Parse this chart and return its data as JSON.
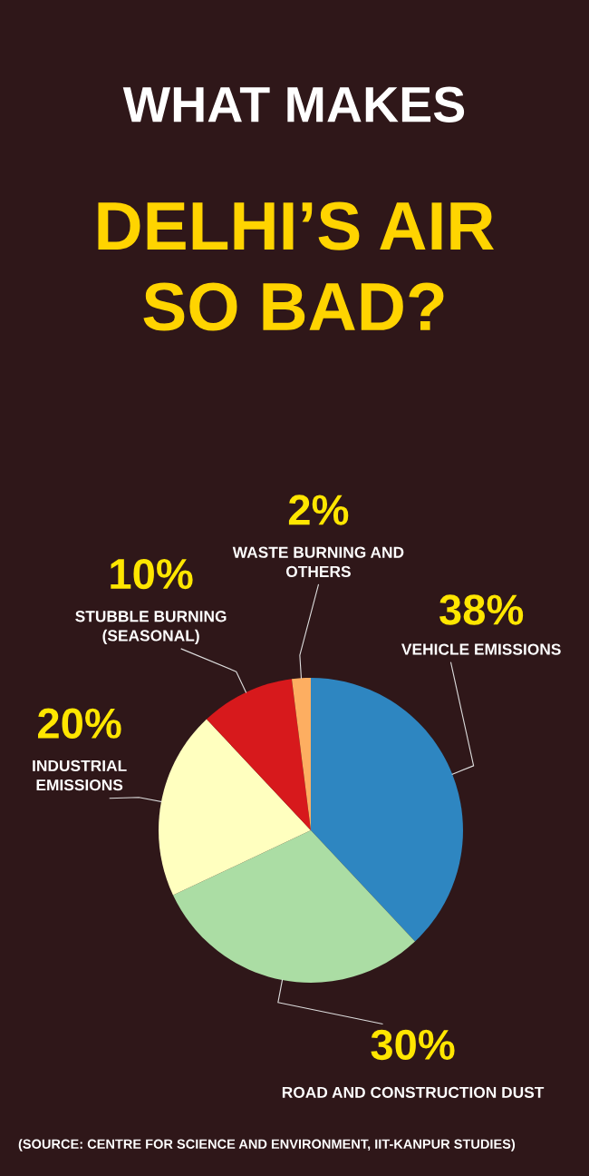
{
  "chart_data": {
    "type": "pie",
    "title": "WHAT MAKES",
    "subtitle": "DELHI’S AIR\nSO BAD?",
    "categories": [
      "VEHICLE EMISSIONS",
      "ROAD AND CONSTRUCTION DUST",
      "INDUSTRIAL\nEMISSIONS",
      "STUBBLE BURNING\n(SEASONAL)",
      "WASTE BURNING AND\nOTHERS"
    ],
    "values": [
      38,
      30,
      20,
      10,
      2
    ],
    "value_labels": [
      "38%",
      "30%",
      "20%",
      "10%",
      "2%"
    ],
    "colors": [
      "#2e86c1",
      "#abdda4",
      "#ffffbf",
      "#d7191c",
      "#fdae61"
    ],
    "legend": false,
    "annotations": [
      "(SOURCE: CENTRE FOR SCIENCE AND ENVIRONMENT, IIT-KANPUR STUDIES)"
    ]
  }
}
